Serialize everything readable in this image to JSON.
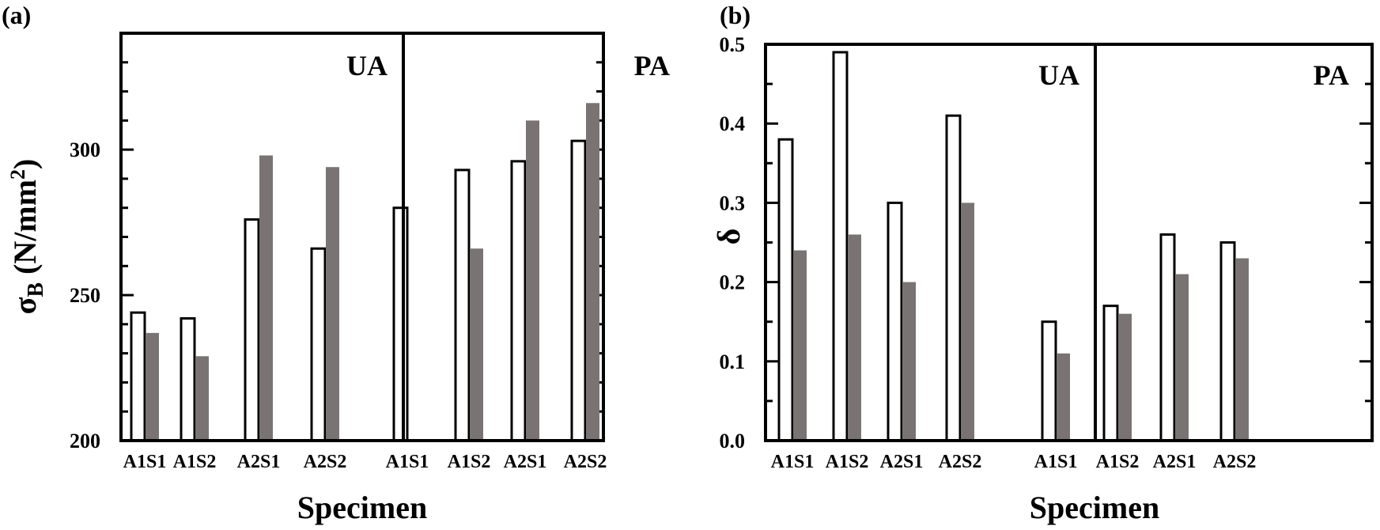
{
  "colors": {
    "open_bar": "#ffffff",
    "filled_bar": "#7a7373",
    "frame": "#000000"
  },
  "chart_data": [
    {
      "type": "bar",
      "panel_label": "(a)",
      "xlabel": "Specimen",
      "ylabel": "σ",
      "ylabel_sub": "B",
      "ylabel_unit_open": " (N/mm",
      "ylabel_unit_sup": "2",
      "ylabel_unit_close": ")",
      "ylim": [
        200,
        340
      ],
      "yticks": [
        200,
        250,
        300
      ],
      "ytick_labels": [
        "200",
        "250",
        "300"
      ],
      "minor_step": 10,
      "groups": [
        {
          "label": "UA",
          "categories": [
            "A1S1",
            "A1S2",
            "A2S1",
            "A2S2"
          ]
        },
        {
          "label": "PA",
          "categories": [
            "A1S1",
            "A1S2",
            "A2S1",
            "A2S2"
          ]
        }
      ],
      "series": [
        {
          "style": "open",
          "values": [
            [
              244,
              242,
              276,
              266
            ],
            [
              280,
              293,
              296,
              303
            ]
          ]
        },
        {
          "style": "filled",
          "values": [
            [
              237,
              229,
              298,
              294
            ],
            [
              null,
              266,
              310,
              316
            ]
          ]
        }
      ]
    },
    {
      "type": "bar",
      "panel_label": "(b)",
      "xlabel": "Specimen",
      "ylabel": "δ",
      "ylim": [
        0.0,
        0.5
      ],
      "yticks": [
        0.0,
        0.1,
        0.2,
        0.3,
        0.4,
        0.5
      ],
      "ytick_labels": [
        "0.0",
        "0.1",
        "0.2",
        "0.3",
        "0.4",
        "0.5"
      ],
      "minor_step": 0.05,
      "groups": [
        {
          "label": "UA",
          "categories": [
            "A1S1",
            "A1S2",
            "A2S1",
            "A2S2"
          ]
        },
        {
          "label": "PA",
          "categories": [
            "A1S1",
            "A1S2",
            "A2S1",
            "A2S2"
          ]
        }
      ],
      "series": [
        {
          "style": "open",
          "values": [
            [
              0.38,
              0.49,
              0.3,
              0.41
            ],
            [
              0.15,
              0.17,
              0.26,
              0.25
            ]
          ]
        },
        {
          "style": "filled",
          "values": [
            [
              0.24,
              0.26,
              0.2,
              0.3
            ],
            [
              0.11,
              0.16,
              0.21,
              0.23
            ]
          ]
        }
      ]
    }
  ]
}
